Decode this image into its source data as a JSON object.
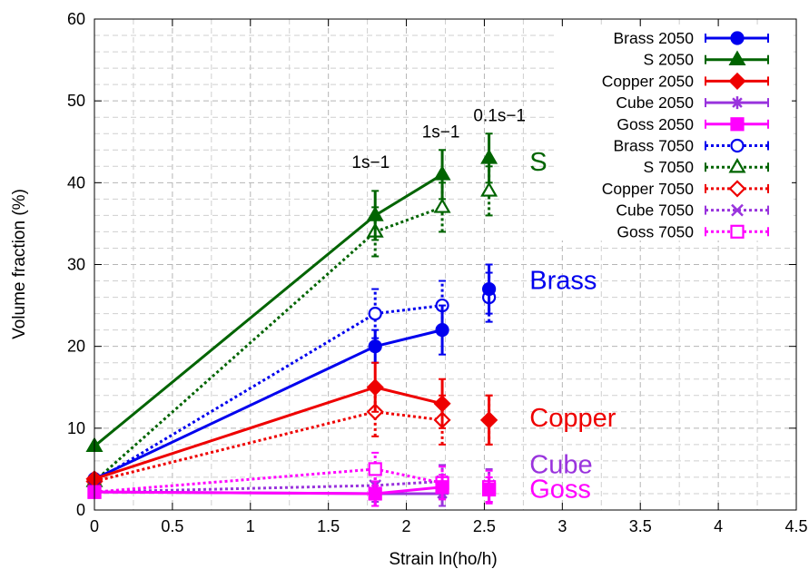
{
  "chart_data": {
    "type": "line",
    "title": "",
    "xlabel": "Strain ln(ho/h)",
    "ylabel": "Volume fraction (%)",
    "xlim": [
      0,
      4.5
    ],
    "ylim": [
      0,
      60
    ],
    "xticks": [
      0,
      0.5,
      1,
      1.5,
      2,
      2.5,
      3,
      3.5,
      4,
      4.5
    ],
    "yticks": [
      0,
      10,
      20,
      30,
      40,
      50,
      60
    ],
    "xtick_labels": [
      "0",
      "0.5",
      "1",
      "1.5",
      "2",
      "2.5",
      "3",
      "3.5",
      "4",
      "4.5"
    ],
    "ytick_labels": [
      "0",
      "10",
      "20",
      "30",
      "40",
      "50",
      "60"
    ],
    "grid": true,
    "legend_position": "top-right",
    "series": [
      {
        "name": "Brass 2050",
        "color": "#0000ee",
        "style": "solid",
        "marker": "circle",
        "filled": true,
        "x": [
          0,
          1.8,
          2.23,
          2.53
        ],
        "y": [
          3.8,
          20,
          22,
          27
        ],
        "err": [
          0,
          2,
          3,
          3
        ],
        "connect": [
          true,
          true,
          false
        ]
      },
      {
        "name": "S 2050",
        "color": "#006400",
        "style": "solid",
        "marker": "triangle",
        "filled": true,
        "x": [
          0,
          1.8,
          2.23,
          2.53
        ],
        "y": [
          7.8,
          36,
          41,
          43
        ],
        "err": [
          0,
          3,
          3,
          3
        ],
        "connect": [
          true,
          true,
          false
        ]
      },
      {
        "name": "Copper 2050",
        "color": "#ee0000",
        "style": "solid",
        "marker": "diamond",
        "filled": true,
        "x": [
          0,
          1.8,
          2.23,
          2.53
        ],
        "y": [
          3.8,
          15,
          13,
          11
        ],
        "err": [
          0,
          3,
          3,
          3
        ],
        "connect": [
          true,
          true,
          false
        ]
      },
      {
        "name": "Cube 2050",
        "color": "#9933dd",
        "style": "solid",
        "marker": "asterisk",
        "filled": true,
        "x": [
          0,
          1.8,
          2.23,
          2.53
        ],
        "y": [
          2.2,
          2,
          2,
          2.5
        ],
        "err": [
          0,
          1.5,
          1.5,
          1.5
        ],
        "connect": [
          true,
          true,
          false
        ]
      },
      {
        "name": "Goss 2050",
        "color": "#ff00ff",
        "style": "solid",
        "marker": "square",
        "filled": true,
        "x": [
          0,
          1.8,
          2.23,
          2.53
        ],
        "y": [
          2.2,
          2,
          2.8,
          2.5
        ],
        "err": [
          0,
          1.5,
          1.5,
          1.5
        ],
        "connect": [
          true,
          true,
          false
        ]
      },
      {
        "name": "Brass 7050",
        "color": "#0000ee",
        "style": "dotted",
        "marker": "circle",
        "filled": false,
        "x": [
          0,
          1.8,
          2.23,
          2.53
        ],
        "y": [
          3.5,
          24,
          25,
          26
        ],
        "err": [
          0,
          3,
          3,
          3
        ],
        "connect": [
          true,
          true,
          false
        ]
      },
      {
        "name": "S 7050",
        "color": "#006400",
        "style": "dotted",
        "marker": "triangle",
        "filled": false,
        "x": [
          0,
          1.8,
          2.23,
          2.53
        ],
        "y": [
          3.5,
          34,
          37,
          39
        ],
        "err": [
          0,
          3,
          3,
          3
        ],
        "connect": [
          true,
          true,
          false
        ]
      },
      {
        "name": "Copper 7050",
        "color": "#ee0000",
        "style": "dotted",
        "marker": "diamond",
        "filled": false,
        "x": [
          0,
          1.8,
          2.23,
          2.53
        ],
        "y": [
          3.5,
          12,
          11,
          11
        ],
        "err": [
          0,
          3,
          3,
          3
        ],
        "connect": [
          true,
          true,
          false
        ]
      },
      {
        "name": "Cube 7050",
        "color": "#9933dd",
        "style": "dotted",
        "marker": "x",
        "filled": false,
        "x": [
          0,
          1.8,
          2.23,
          2.53
        ],
        "y": [
          2.2,
          3,
          3.5,
          3
        ],
        "err": [
          0,
          2,
          2,
          2
        ],
        "connect": [
          true,
          true,
          false
        ]
      },
      {
        "name": "Goss 7050",
        "color": "#ff00ff",
        "style": "dotted",
        "marker": "square",
        "filled": false,
        "x": [
          0,
          1.8,
          2.23,
          2.53
        ],
        "y": [
          2.2,
          5,
          3.3,
          2.8
        ],
        "err": [
          0,
          2,
          2,
          2
        ],
        "connect": [
          true,
          true,
          false
        ]
      }
    ],
    "annotations": [
      {
        "text": "1s−1",
        "x": 1.65,
        "y": 41.8,
        "color": "#000000",
        "size": "small"
      },
      {
        "text": "1s−1",
        "x": 2.1,
        "y": 45.5,
        "color": "#000000",
        "size": "small"
      },
      {
        "text": "0.1s−1",
        "x": 2.43,
        "y": 47.5,
        "color": "#000000",
        "size": "small"
      },
      {
        "text": "S",
        "x": 2.79,
        "y": 41.5,
        "color": "#006400",
        "size": "large"
      },
      {
        "text": "Brass",
        "x": 2.79,
        "y": 27,
        "color": "#0000ee",
        "size": "large"
      },
      {
        "text": "Copper",
        "x": 2.79,
        "y": 10.2,
        "color": "#ee0000",
        "size": "large"
      },
      {
        "text": "Cube",
        "x": 2.79,
        "y": 4.5,
        "color": "#9933dd",
        "size": "large"
      },
      {
        "text": "Goss",
        "x": 2.79,
        "y": 1.5,
        "color": "#ff00ff",
        "size": "large"
      }
    ]
  }
}
